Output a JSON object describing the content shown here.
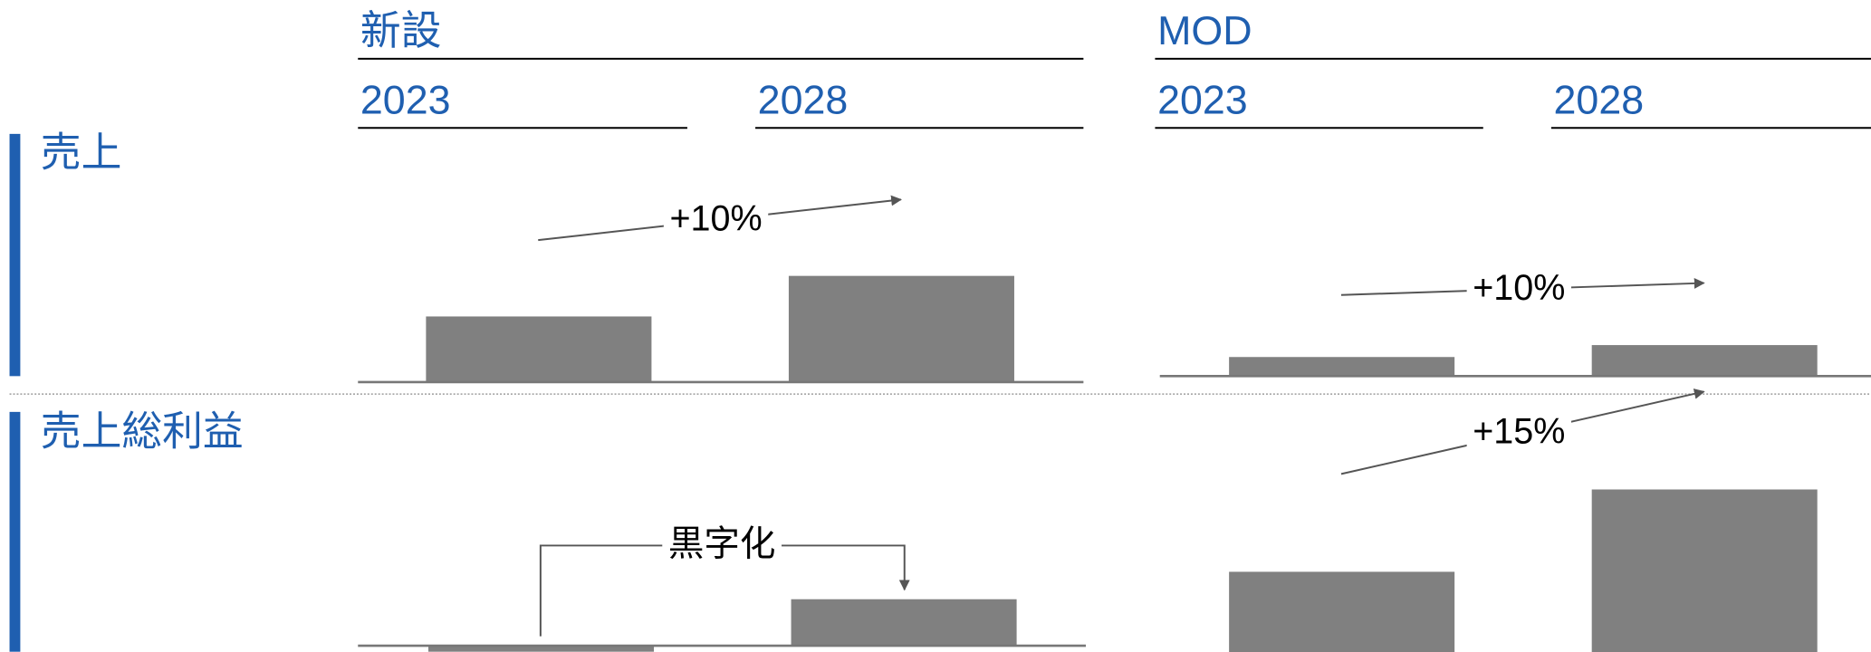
{
  "columns": [
    {
      "title": "新設",
      "years": [
        "2023",
        "2028"
      ]
    },
    {
      "title": "MOD",
      "years": [
        "2023",
        "2028"
      ]
    }
  ],
  "rows": [
    {
      "label": "売上",
      "panels": [
        {
          "type": "bar",
          "values": [
            55,
            89
          ],
          "annotation": "+10%"
        },
        {
          "type": "bar",
          "values": [
            16,
            26
          ],
          "annotation": "+10%"
        }
      ]
    },
    {
      "label": "売上総利益",
      "panels": [
        {
          "type": "bar",
          "values": [
            -5,
            39
          ],
          "annotation": "黒字化"
        },
        {
          "type": "bar",
          "values": [
            72,
            141
          ],
          "annotation": "+15%"
        }
      ]
    }
  ],
  "color": "#808080"
}
